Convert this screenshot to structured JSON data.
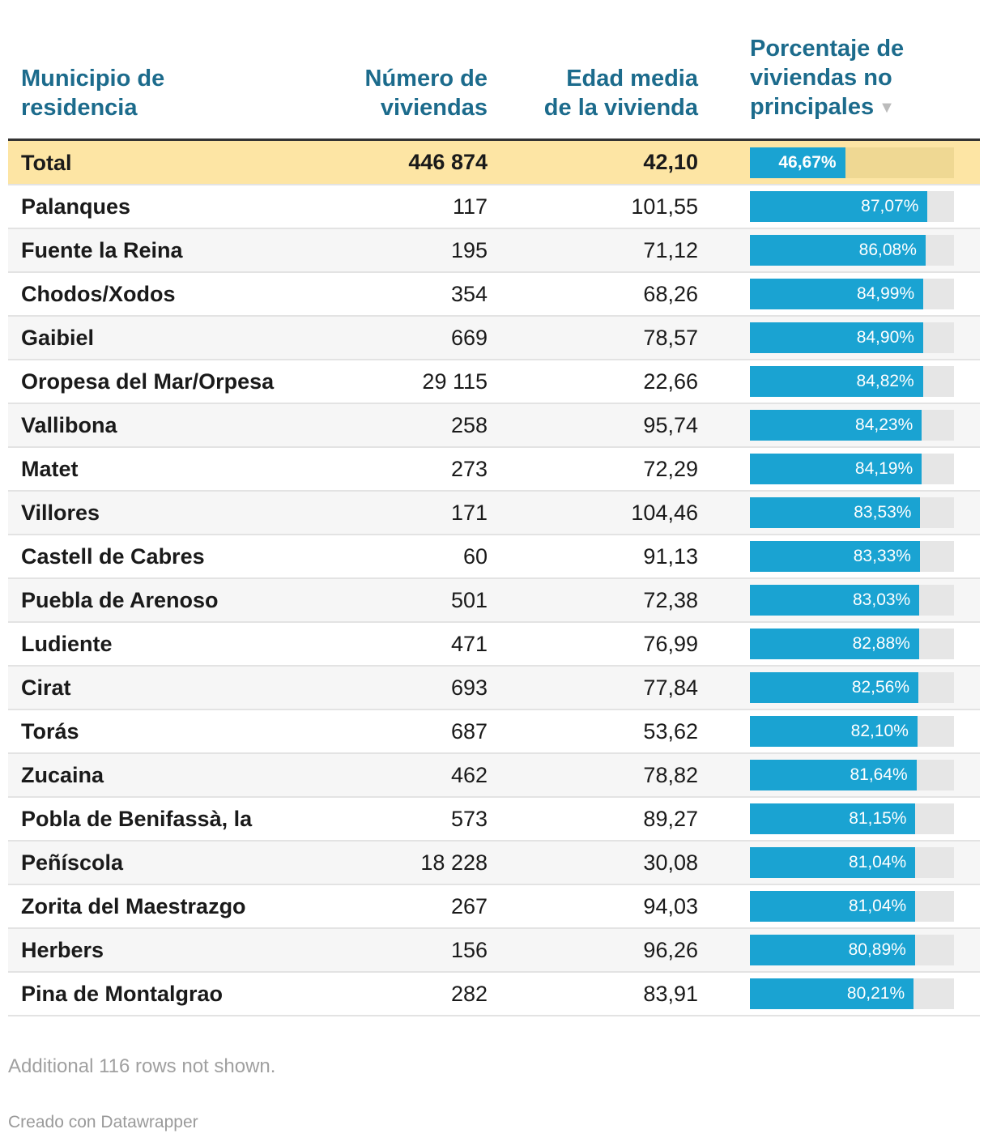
{
  "chart_data": {
    "type": "table",
    "columns": [
      "Municipio de residencia",
      "Número de viviendas",
      "Edad media de la vivienda",
      "Porcentaje de viviendas no principales"
    ],
    "sort_indicator": "▼",
    "bar_max": 100,
    "total": {
      "name": "Total",
      "viviendas": "446 874",
      "edad": "42,10",
      "pct_label": "46,67%",
      "pct": 46.67
    },
    "rows": [
      {
        "name": "Palanques",
        "viviendas": "117",
        "edad": "101,55",
        "pct_label": "87,07%",
        "pct": 87.07
      },
      {
        "name": "Fuente la Reina",
        "viviendas": "195",
        "edad": "71,12",
        "pct_label": "86,08%",
        "pct": 86.08
      },
      {
        "name": "Chodos/Xodos",
        "viviendas": "354",
        "edad": "68,26",
        "pct_label": "84,99%",
        "pct": 84.99
      },
      {
        "name": "Gaibiel",
        "viviendas": "669",
        "edad": "78,57",
        "pct_label": "84,90%",
        "pct": 84.9
      },
      {
        "name": "Oropesa del Mar/Orpesa",
        "viviendas": "29 115",
        "edad": "22,66",
        "pct_label": "84,82%",
        "pct": 84.82
      },
      {
        "name": "Vallibona",
        "viviendas": "258",
        "edad": "95,74",
        "pct_label": "84,23%",
        "pct": 84.23
      },
      {
        "name": "Matet",
        "viviendas": "273",
        "edad": "72,29",
        "pct_label": "84,19%",
        "pct": 84.19
      },
      {
        "name": "Villores",
        "viviendas": "171",
        "edad": "104,46",
        "pct_label": "83,53%",
        "pct": 83.53
      },
      {
        "name": "Castell de Cabres",
        "viviendas": "60",
        "edad": "91,13",
        "pct_label": "83,33%",
        "pct": 83.33
      },
      {
        "name": "Puebla de Arenoso",
        "viviendas": "501",
        "edad": "72,38",
        "pct_label": "83,03%",
        "pct": 83.03
      },
      {
        "name": "Ludiente",
        "viviendas": "471",
        "edad": "76,99",
        "pct_label": "82,88%",
        "pct": 82.88
      },
      {
        "name": "Cirat",
        "viviendas": "693",
        "edad": "77,84",
        "pct_label": "82,56%",
        "pct": 82.56
      },
      {
        "name": "Torás",
        "viviendas": "687",
        "edad": "53,62",
        "pct_label": "82,10%",
        "pct": 82.1
      },
      {
        "name": "Zucaina",
        "viviendas": "462",
        "edad": "78,82",
        "pct_label": "81,64%",
        "pct": 81.64
      },
      {
        "name": "Pobla de Benifassà, la",
        "viviendas": "573",
        "edad": "89,27",
        "pct_label": "81,15%",
        "pct": 81.15
      },
      {
        "name": "Peñíscola",
        "viviendas": "18 228",
        "edad": "30,08",
        "pct_label": "81,04%",
        "pct": 81.04
      },
      {
        "name": "Zorita del Maestrazgo",
        "viviendas": "267",
        "edad": "94,03",
        "pct_label": "81,04%",
        "pct": 81.04
      },
      {
        "name": "Herbers",
        "viviendas": "156",
        "edad": "96,26",
        "pct_label": "80,89%",
        "pct": 80.89
      },
      {
        "name": "Pina de Montalgrao",
        "viviendas": "282",
        "edad": "83,91",
        "pct_label": "80,21%",
        "pct": 80.21
      }
    ]
  },
  "footer": {
    "note": "Additional 116 rows not shown.",
    "credit": "Creado con Datawrapper"
  },
  "colors": {
    "header_text": "#1c6b8c",
    "bar": "#1aa3d2",
    "total_row": "#fde5a4"
  }
}
